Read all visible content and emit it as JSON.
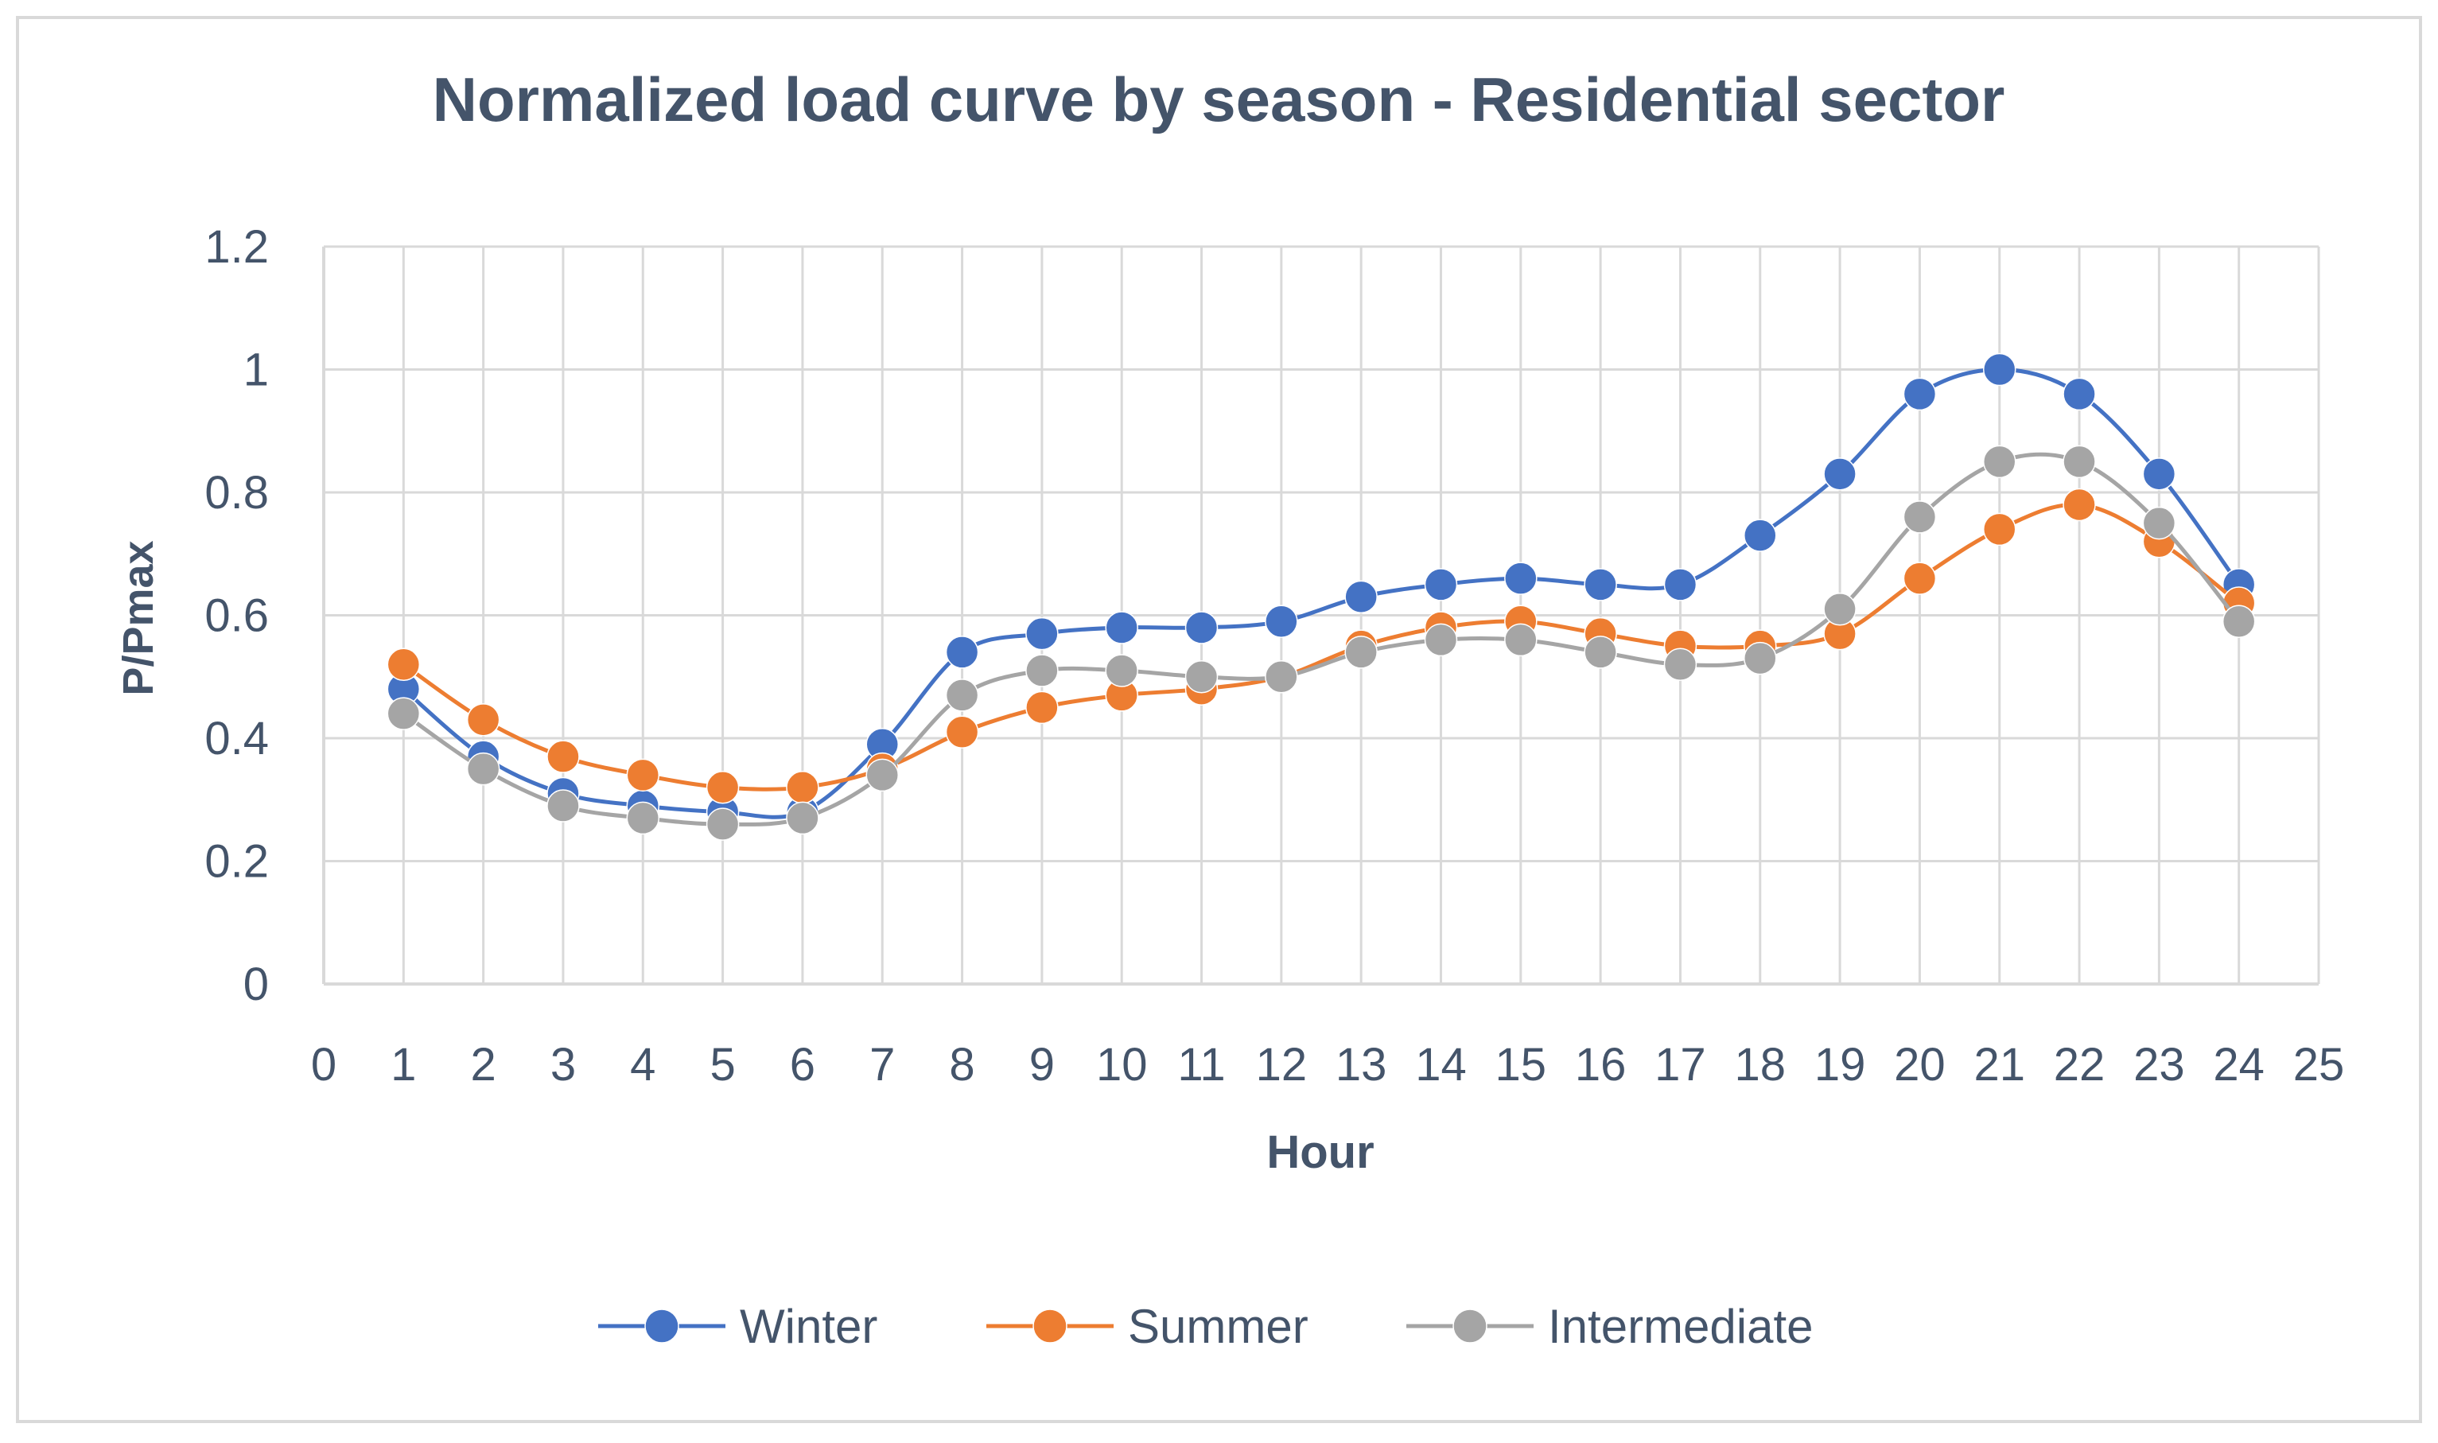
{
  "chart_data": {
    "type": "line",
    "title": "Normalized load curve by season - Residential sector",
    "xlabel": "Hour",
    "ylabel": "P/Pmax",
    "xlim": [
      0,
      25
    ],
    "ylim": [
      0,
      1.2
    ],
    "x_ticks": [
      0,
      1,
      2,
      3,
      4,
      5,
      6,
      7,
      8,
      9,
      10,
      11,
      12,
      13,
      14,
      15,
      16,
      17,
      18,
      19,
      20,
      21,
      22,
      23,
      24,
      25
    ],
    "y_ticks": [
      0,
      0.2,
      0.4,
      0.6,
      0.8,
      1,
      1.2
    ],
    "y_tick_labels": [
      "0",
      "0.2",
      "0.4",
      "0.6",
      "0.8",
      "1",
      "1.2"
    ],
    "grid": true,
    "legend_position": "bottom",
    "smooth": true,
    "x": [
      1,
      2,
      3,
      4,
      5,
      6,
      7,
      8,
      9,
      10,
      11,
      12,
      13,
      14,
      15,
      16,
      17,
      18,
      19,
      20,
      21,
      22,
      23,
      24
    ],
    "series": [
      {
        "name": "Winter",
        "color": "#4472C4",
        "values": [
          0.48,
          0.37,
          0.31,
          0.29,
          0.28,
          0.28,
          0.39,
          0.54,
          0.57,
          0.58,
          0.58,
          0.59,
          0.63,
          0.65,
          0.66,
          0.65,
          0.65,
          0.73,
          0.83,
          0.96,
          1.0,
          0.96,
          0.83,
          0.65
        ]
      },
      {
        "name": "Summer",
        "color": "#ED7D31",
        "values": [
          0.52,
          0.43,
          0.37,
          0.34,
          0.32,
          0.32,
          0.35,
          0.41,
          0.45,
          0.47,
          0.48,
          0.5,
          0.55,
          0.58,
          0.59,
          0.57,
          0.55,
          0.55,
          0.57,
          0.66,
          0.74,
          0.78,
          0.72,
          0.62
        ]
      },
      {
        "name": "Intermediate",
        "color": "#A5A5A5",
        "values": [
          0.44,
          0.35,
          0.29,
          0.27,
          0.26,
          0.27,
          0.34,
          0.47,
          0.51,
          0.51,
          0.5,
          0.5,
          0.54,
          0.56,
          0.56,
          0.54,
          0.52,
          0.53,
          0.61,
          0.76,
          0.85,
          0.85,
          0.75,
          0.59
        ]
      }
    ]
  },
  "colors": {
    "text": "#44546A",
    "grid": "#D9D9D9",
    "border": "#D9D9D9"
  }
}
